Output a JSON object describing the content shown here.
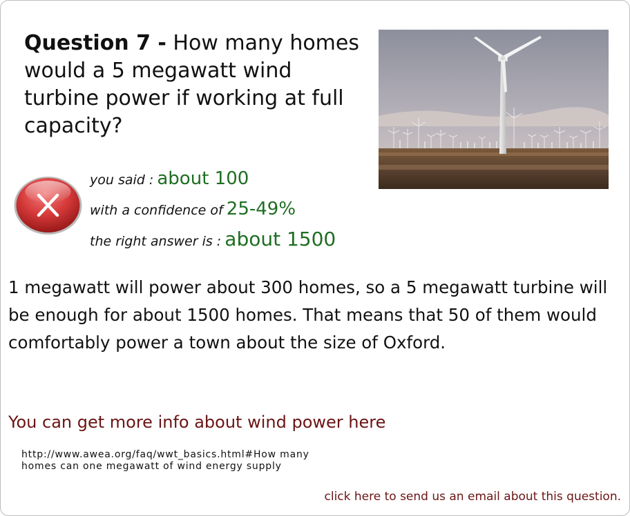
{
  "question": {
    "number_label": "Question 7 -",
    "text": "How many homes would a 5 megawatt wind turbine power if working at full capacity?"
  },
  "result": {
    "status_icon": "wrong-x-icon",
    "you_said_label": "you said :",
    "you_said_value": "about 100",
    "confidence_label": "with a confidence of",
    "confidence_value": "25-49%",
    "right_answer_label": "the right answer is :",
    "right_answer_value": "about 1500"
  },
  "explanation": "1 megawatt will power about 300 homes, so a 5 megawatt turbine will be enough for about 1500 homes. That means that 50 of them would comfortably power a town about the size of Oxford.",
  "more_info": {
    "link_text": "You can get more info about wind power here",
    "url_line1": "http://www.awea.org/faq/wwt_basics.html#How many",
    "url_line2": "homes can one megawatt of wind energy supply"
  },
  "email_link": "click here to send us an email about this question.",
  "colors": {
    "answer_green": "#1f6e22",
    "link_maroon": "#6b1414",
    "wrong_red": "#c62828"
  }
}
